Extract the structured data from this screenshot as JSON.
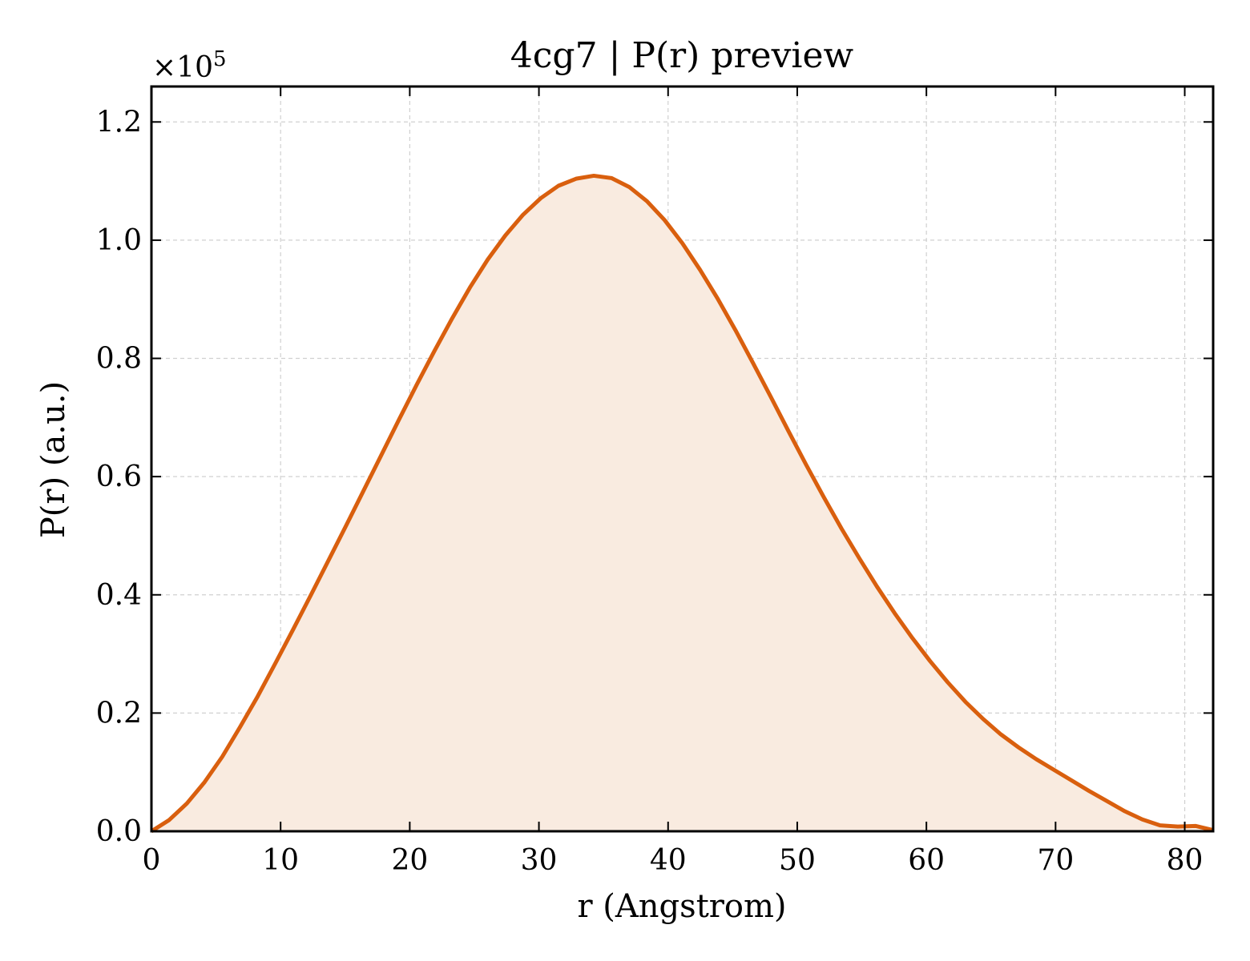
{
  "chart_data": {
    "type": "area",
    "title": "4cg7 | P(r) preview",
    "xlabel": "r (Angstrom)",
    "ylabel": "P(r) (a.u.)",
    "y_multiplier": {
      "base": "×10",
      "exponent": "5"
    },
    "xlim": [
      0,
      82.2
    ],
    "ylim": [
      0,
      1.26
    ],
    "xticks": [
      0,
      10,
      20,
      30,
      40,
      50,
      60,
      70,
      80
    ],
    "xtick_labels": [
      "0",
      "10",
      "20",
      "30",
      "40",
      "50",
      "60",
      "70",
      "80"
    ],
    "yticks": [
      0.0,
      0.2,
      0.4,
      0.6,
      0.8,
      1.0,
      1.2
    ],
    "ytick_labels": [
      "0.0",
      "0.2",
      "0.4",
      "0.6",
      "0.8",
      "1.0",
      "1.2"
    ],
    "grid": true,
    "color": "#d95f0e",
    "fill_color": "#f9ebe0",
    "series": [
      {
        "x": [
          0,
          1.37,
          2.74,
          4.11,
          5.48,
          6.85,
          8.22,
          9.59,
          10.96,
          12.33,
          13.7,
          15.07,
          16.44,
          17.81,
          19.18,
          20.55,
          21.92,
          23.29,
          24.66,
          26.03,
          27.4,
          28.77,
          30.14,
          31.51,
          32.88,
          34.25,
          35.62,
          36.99,
          38.36,
          39.73,
          41.1,
          42.47,
          43.84,
          45.21,
          46.58,
          47.95,
          49.32,
          50.69,
          52.06,
          53.43,
          54.8,
          56.17,
          57.54,
          58.91,
          60.28,
          61.65,
          63.02,
          64.39,
          65.76,
          67.13,
          68.5,
          69.87,
          71.24,
          72.61,
          73.98,
          75.35,
          76.72,
          78.09,
          79.46,
          80.83,
          82.2
        ],
        "y": [
          0.0,
          0.019,
          0.047,
          0.083,
          0.126,
          0.176,
          0.228,
          0.284,
          0.341,
          0.399,
          0.458,
          0.517,
          0.577,
          0.637,
          0.697,
          0.756,
          0.813,
          0.868,
          0.92,
          0.967,
          1.008,
          1.043,
          1.071,
          1.092,
          1.104,
          1.109,
          1.105,
          1.09,
          1.066,
          1.034,
          0.995,
          0.95,
          0.901,
          0.848,
          0.792,
          0.735,
          0.677,
          0.62,
          0.565,
          0.512,
          0.462,
          0.414,
          0.369,
          0.327,
          0.288,
          0.252,
          0.219,
          0.19,
          0.164,
          0.142,
          0.122,
          0.104,
          0.086,
          0.068,
          0.051,
          0.034,
          0.02,
          0.01,
          0.008,
          0.009,
          0.002
        ]
      }
    ]
  }
}
